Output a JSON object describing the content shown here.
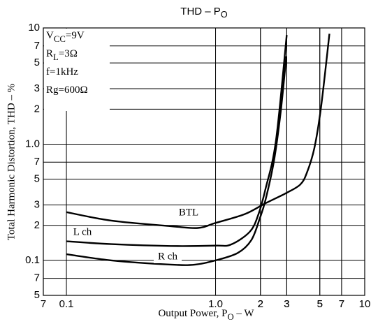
{
  "chart_data": {
    "type": "line",
    "title": {
      "main": "THD  –  P",
      "sub": "O"
    },
    "x_label": {
      "main": "Output Power, P",
      "sub": "O",
      "rest": "  –  W"
    },
    "y_label": "Total Harmonic Distortion, THD  –  %",
    "log_x": true,
    "log_y": true,
    "grid": true,
    "xlim": [
      0.07,
      10
    ],
    "ylim": [
      0.05,
      10
    ],
    "xticks": [
      {
        "value": 0.07,
        "label": "7"
      },
      0.1,
      2,
      3,
      5,
      7,
      {
        "value": 1,
        "label": "1.0"
      },
      {
        "value": 2,
        "label": "2"
      },
      {
        "value": 3,
        "label": "3"
      },
      {
        "value": 5,
        "label": "5"
      },
      {
        "value": 7,
        "label": "7"
      },
      10
    ],
    "yticks": [
      10,
      7,
      5,
      3,
      2,
      {
        "value": 1,
        "label": "1.0"
      },
      {
        "value": 0.7,
        "label": "7"
      },
      {
        "value": 0.5,
        "label": "5"
      },
      {
        "value": 0.3,
        "label": "3"
      },
      {
        "value": 0.2,
        "label": "2"
      },
      0.1,
      {
        "value": 0.07,
        "label": "7"
      },
      {
        "value": 0.05,
        "label": "5"
      }
    ],
    "annotations": [
      {
        "main": "V",
        "sub": "CC",
        "rest": "=9V"
      },
      {
        "main": "R",
        "sub": "L",
        "rest": "=3Ω"
      },
      {
        "main": "f=1kHz"
      },
      {
        "main": "Rg=600Ω"
      }
    ],
    "series": [
      {
        "name": "BTL",
        "color": "#000000",
        "x": [
          0.1,
          0.2,
          0.5,
          0.76,
          1,
          1.57,
          2.16,
          2.98,
          3.7,
          4.1,
          4.6,
          5.1,
          5.8
        ],
        "values": [
          0.26,
          0.22,
          0.197,
          0.19,
          0.21,
          0.25,
          0.31,
          0.38,
          0.45,
          0.57,
          0.93,
          2.1,
          8.9
        ]
      },
      {
        "name": "L ch",
        "color": "#000000",
        "x": [
          0.1,
          0.2,
          0.5,
          1,
          1.27,
          1.7,
          1.94,
          2.16,
          2.54,
          3.0
        ],
        "values": [
          0.146,
          0.138,
          0.133,
          0.134,
          0.137,
          0.177,
          0.25,
          0.41,
          1.07,
          8.7
        ]
      },
      {
        "name": "R ch",
        "color": "#000000",
        "x": [
          0.1,
          0.2,
          0.5,
          0.73,
          1,
          1.41,
          1.74,
          1.98,
          2.16,
          2.46,
          2.73,
          2.98
        ],
        "values": [
          0.113,
          0.1,
          0.092,
          0.092,
          0.1,
          0.116,
          0.15,
          0.23,
          0.33,
          0.71,
          1.87,
          5.7
        ]
      }
    ]
  }
}
